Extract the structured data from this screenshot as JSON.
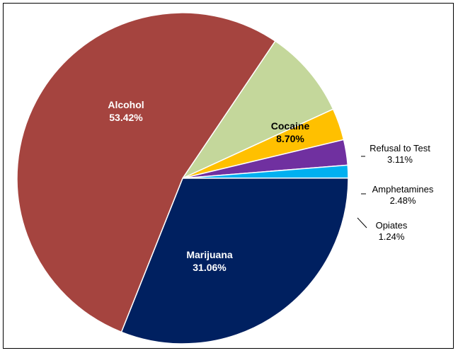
{
  "chart_data": {
    "type": "pie",
    "title": "",
    "start_angle_deg": 56,
    "direction": "clockwise",
    "slices": [
      {
        "label": "Cocaine",
        "value": 8.7,
        "value_label": "8.70%",
        "color": "#c4d79b",
        "label_position": "inside",
        "label_color": "#000000"
      },
      {
        "label": "Refusal to Test",
        "value": 3.11,
        "value_label": "3.11%",
        "color": "#ffc000",
        "label_position": "outside",
        "label_color": "#000000"
      },
      {
        "label": "Amphetamines",
        "value": 2.48,
        "value_label": "2.48%",
        "color": "#7030a0",
        "label_position": "outside",
        "label_color": "#000000"
      },
      {
        "label": "Opiates",
        "value": 1.24,
        "value_label": "1.24%",
        "color": "#00b0f0",
        "label_position": "outside",
        "label_color": "#000000"
      },
      {
        "label": "Marijuana",
        "value": 31.06,
        "value_label": "31.06%",
        "color": "#002060",
        "label_position": "inside",
        "label_color": "#ffffff"
      },
      {
        "label": "Alcohol",
        "value": 53.42,
        "value_label": "53.42%",
        "color": "#a5443f",
        "label_position": "inside",
        "label_color": "#ffffff"
      }
    ]
  }
}
